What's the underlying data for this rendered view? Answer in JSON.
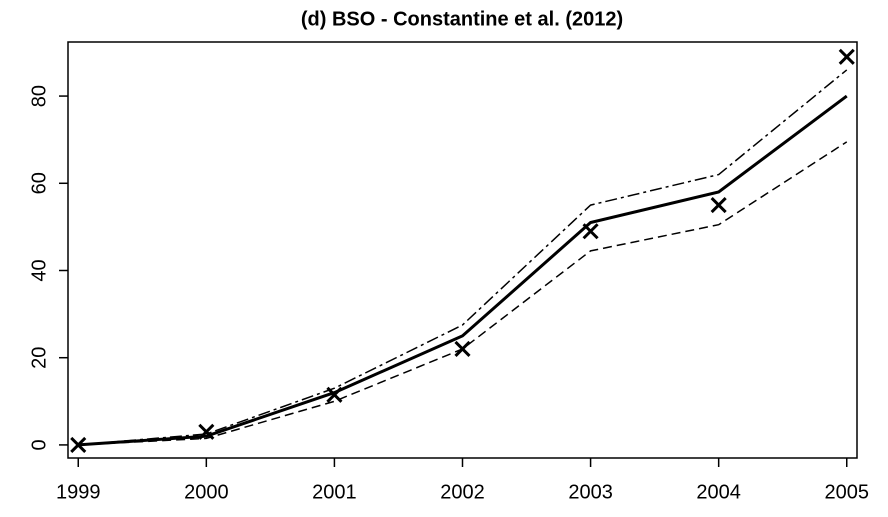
{
  "chart_data": {
    "type": "line",
    "title": "(d) BSO - Constantine et al. (2012)",
    "x": [
      1999,
      2000,
      2001,
      2002,
      2003,
      2004,
      2005
    ],
    "series": [
      {
        "color": "#000000",
        "line": "solid",
        "width": 3,
        "values": [
          0,
          2,
          12,
          25,
          51,
          58,
          80
        ]
      },
      {
        "color": "#000000",
        "line": "dashdot",
        "width": 1.5,
        "values": [
          0,
          2.5,
          13,
          27.5,
          55,
          62,
          86
        ]
      },
      {
        "color": "#000000",
        "line": "dashed",
        "width": 1.5,
        "values": [
          0,
          1.5,
          10,
          22,
          44.5,
          50.5,
          69.5
        ]
      },
      {
        "color": "#000000",
        "line": "none",
        "marker": "x",
        "values": [
          0,
          3,
          11.5,
          22,
          49,
          55,
          89
        ]
      }
    ],
    "xlim": [
      1998.92,
      2005.08
    ],
    "xticks": [
      1999,
      2000,
      2001,
      2002,
      2003,
      2004,
      2005
    ],
    "ylim": [
      -3,
      92.4
    ],
    "yticks": [
      0,
      20,
      40,
      60,
      80
    ],
    "grid": false
  }
}
